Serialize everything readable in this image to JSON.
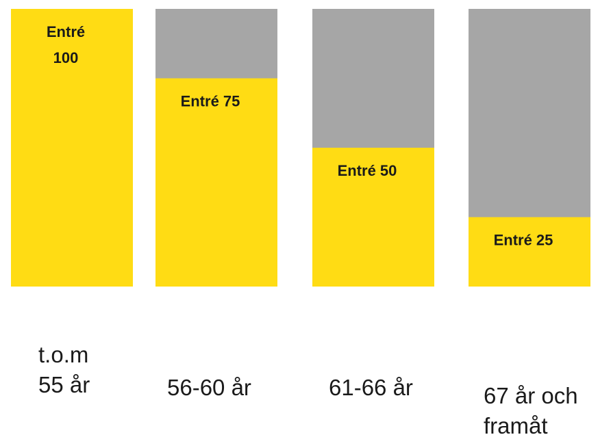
{
  "chart_data": {
    "type": "bar",
    "stacked": true,
    "categories": [
      "t.o.m\n55 år",
      "56-60 år",
      "61-66 år",
      "67 år och\nframåt"
    ],
    "ylim": [
      0,
      100
    ],
    "series": [
      {
        "values": [
          100,
          75,
          50,
          25
        ],
        "labels": [
          "Entré\n100",
          "Entré 75",
          "Entré 50",
          "Entré 25"
        ]
      },
      {
        "values": [
          0,
          25,
          50,
          75
        ]
      }
    ],
    "colors": {
      "entry": "#FFDC14",
      "remainder": "#A6A6A6"
    },
    "grid": false,
    "legend": "none"
  }
}
